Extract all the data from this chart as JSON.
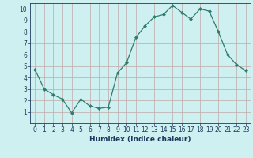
{
  "x": [
    0,
    1,
    2,
    3,
    4,
    5,
    6,
    7,
    8,
    9,
    10,
    11,
    12,
    13,
    14,
    15,
    16,
    17,
    18,
    19,
    20,
    21,
    22,
    23
  ],
  "y": [
    4.7,
    3.0,
    2.5,
    2.1,
    0.9,
    2.1,
    1.5,
    1.3,
    1.4,
    4.4,
    5.3,
    7.5,
    8.5,
    9.3,
    9.5,
    10.3,
    9.7,
    9.1,
    10.0,
    9.8,
    8.0,
    6.0,
    5.1,
    4.6
  ],
  "line_color": "#2e7d6e",
  "marker": "D",
  "marker_size": 2,
  "bg_color": "#cff0f0",
  "grid_color": "#c0a8a8",
  "xlabel": "Humidex (Indice chaleur)",
  "xlabel_color": "#1a3a5c",
  "xlim": [
    -0.5,
    23.5
  ],
  "ylim": [
    0,
    10.5
  ],
  "yticks": [
    1,
    2,
    3,
    4,
    5,
    6,
    7,
    8,
    9,
    10
  ],
  "xticks": [
    0,
    1,
    2,
    3,
    4,
    5,
    6,
    7,
    8,
    9,
    10,
    11,
    12,
    13,
    14,
    15,
    16,
    17,
    18,
    19,
    20,
    21,
    22,
    23
  ],
  "tick_color": "#1a3a5c",
  "spine_color": "#1a3a5c",
  "font_size_xlabel": 6.5,
  "font_size_ticks": 5.5
}
